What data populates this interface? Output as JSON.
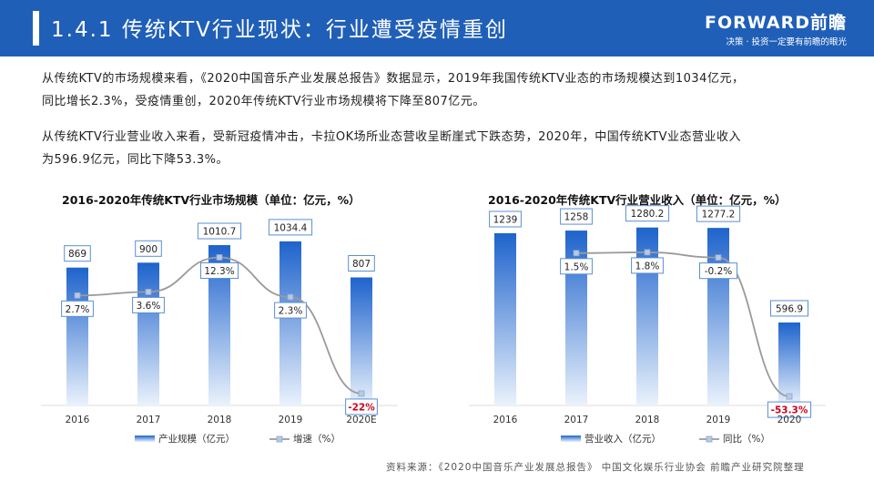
{
  "header": {
    "title": "1.4.1 传统KTV行业现状：行业遭受疫情重创",
    "brand_name": "FORWARD前瞻",
    "brand_slogan": "决策 · 投资一定要有前瞻的眼光"
  },
  "paragraphs": {
    "p1_line1": "从传统KTV的市场规模来看，《2020中国音乐产业发展总报告》数据显示，2019年我国传统KTV业态的市场规模达到1034亿元，",
    "p1_line2": "同比增长2.3%，受疫情重创，2020年传统KTV行业市场规模将下降至807亿元。",
    "p2_line1": "从传统KTV行业营业收入来看，受新冠疫情冲击，卡拉OK场所业态营收呈断崖式下跌态势，2020年，中国传统KTV业态营业收入",
    "p2_line2": "为596.9亿元，同比下降53.3%。"
  },
  "source": "资料来源：《2020中国音乐产业发展总报告》 中国文化娱乐行业协会  前瞻产业研究院整理",
  "colors": {
    "header": "#1f5fb8",
    "bar_top": "#1e63cc",
    "bar_bottom": "#eaf2fc",
    "line": "#9a9a9a",
    "negative": "#d0021b"
  },
  "chart_data": [
    {
      "type": "bar",
      "title": "2016-2020年传统KTV行业市场规模（单位：亿元，%）",
      "categories": [
        "2016",
        "2017",
        "2018",
        "2019",
        "2020E"
      ],
      "series": [
        {
          "name": "产业规模（亿元）",
          "type": "bar",
          "values": [
            869,
            900,
            1010.7,
            1034.4,
            807
          ],
          "labels": [
            "869",
            "900",
            "1010.7",
            "1034.4",
            "807"
          ]
        },
        {
          "name": "增速（%）",
          "type": "line",
          "values": [
            2.7,
            3.6,
            12.3,
            2.3,
            -22
          ],
          "labels": [
            "2.7%",
            "3.6%",
            "12.3%",
            "2.3%",
            "-22%"
          ]
        }
      ],
      "bar_ylim": [
        0,
        1120
      ],
      "line_ylim": [
        -25,
        17
      ],
      "legend": "bottom"
    },
    {
      "type": "bar",
      "title": "2016-2020年传统KTV行业营业收入（单位：亿元，%）",
      "categories": [
        "2016",
        "2017",
        "2018",
        "2019",
        "2020"
      ],
      "series": [
        {
          "name": "营业收入（亿元）",
          "type": "bar",
          "values": [
            1239,
            1258,
            1280.2,
            1277.2,
            596.9
          ],
          "labels": [
            "1239",
            "1258",
            "1280.2",
            "1277.2",
            "596.9"
          ]
        },
        {
          "name": "同比（%）",
          "type": "line",
          "values": [
            null,
            1.5,
            1.8,
            -0.2,
            -53.3
          ],
          "labels": [
            "",
            "1.5%",
            "1.8%",
            "-0.2%",
            "-53.3%"
          ]
        }
      ],
      "bar_ylim": [
        0,
        1370
      ],
      "line_ylim": [
        -55,
        7
      ],
      "legend": "bottom"
    }
  ]
}
